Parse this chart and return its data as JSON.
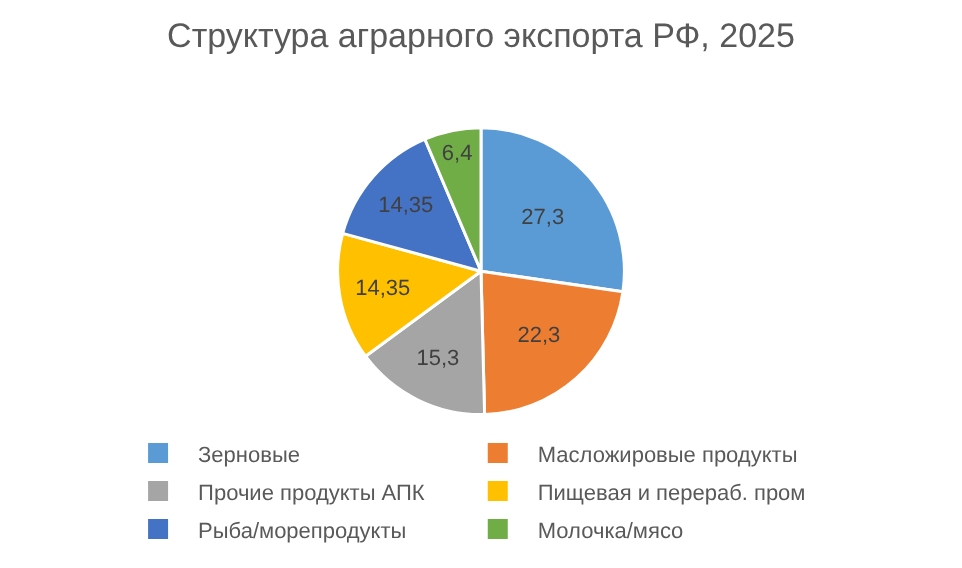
{
  "chart_data": {
    "type": "pie",
    "title": "Структура аграрного экспорта РФ, 2025",
    "categories": [
      "Зерновые",
      "Масложировые продукты",
      "Прочие продукты АПК",
      "Пищевая и перераб. пром",
      "Рыба/морепродукты",
      "Молочка/мясо"
    ],
    "values": [
      27.3,
      22.3,
      15.3,
      14.35,
      14.35,
      6.4
    ],
    "value_labels": [
      "27,3",
      "22,3",
      "15,3",
      "14,35",
      "14,35",
      "6,4"
    ],
    "colors": [
      "#5b9bd5",
      "#ed7d31",
      "#a5a5a5",
      "#ffc000",
      "#4472c4",
      "#70ad47"
    ],
    "legend": "bottom"
  }
}
